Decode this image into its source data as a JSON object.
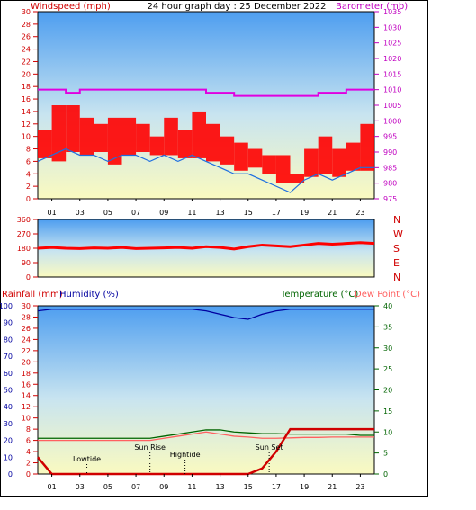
{
  "title": "24 hour graph day : 25 December 2022",
  "colors": {
    "wind": "#ff0000",
    "gust_line": "#1e6fe0",
    "baro": "#e000e0",
    "humidity": "#0000a0",
    "temperature": "#006400",
    "dewpoint": "#ff6060",
    "rain": "#d00000",
    "grad_top": "#5aa8f0",
    "grad_bottom": "#f8f8c8"
  },
  "chart_data": [
    {
      "type": "line",
      "title": "24 hour graph day : 25 December 2022",
      "ylabel": "Windspeed (mph)",
      "ylabel2": "Barometer (mb)",
      "ylim": [
        0,
        30
      ],
      "ylim2": [
        975,
        1035
      ],
      "yticks": [
        "0",
        "2",
        "4",
        "6",
        "8",
        "10",
        "12",
        "14",
        "16",
        "18",
        "20",
        "22",
        "24",
        "26",
        "28",
        "30"
      ],
      "yticks2": [
        "975",
        "980",
        "985",
        "990",
        "995",
        "1000",
        "1005",
        "1010",
        "1015",
        "1020",
        "1025",
        "1030",
        "1035"
      ],
      "xticks": [
        "01",
        "03",
        "05",
        "07",
        "09",
        "11",
        "13",
        "15",
        "17",
        "19",
        "21",
        "23"
      ],
      "x": [
        0,
        1,
        2,
        3,
        4,
        5,
        6,
        7,
        8,
        9,
        10,
        11,
        12,
        13,
        14,
        15,
        16,
        17,
        18,
        19,
        20,
        21,
        22,
        23,
        24
      ],
      "series": [
        {
          "name": "Windspeed (mph)",
          "values": [
            8,
            9,
            10,
            9,
            9,
            8,
            9,
            9,
            8,
            9,
            8,
            9,
            8,
            7,
            6,
            6,
            5,
            4,
            3,
            5,
            6,
            5,
            6,
            7,
            7
          ]
        },
        {
          "name": "Barometer (mb)",
          "values": [
            1010,
            1010,
            1009,
            1010,
            1010,
            1010,
            1010,
            1010,
            1010,
            1010,
            1010,
            1010,
            1009,
            1009,
            1008,
            1008,
            1008,
            1008,
            1008,
            1008,
            1009,
            1009,
            1010,
            1010,
            1010
          ]
        }
      ]
    },
    {
      "type": "line",
      "ylabel": "N W S E N",
      "ylim": [
        0,
        360
      ],
      "yticks": [
        "0",
        "90",
        "180",
        "270",
        "360"
      ],
      "compass": [
        "N",
        "W",
        "S",
        "E",
        "N"
      ],
      "series": [
        {
          "name": "Wind direction",
          "values": [
            180,
            185,
            180,
            178,
            182,
            180,
            185,
            178,
            180,
            182,
            185,
            180,
            190,
            185,
            175,
            190,
            200,
            195,
            190,
            200,
            210,
            205,
            210,
            215,
            210
          ]
        }
      ]
    },
    {
      "type": "line",
      "ylabel": "Rainfall (mm)",
      "ylabel_humidity": "Humidity (%)",
      "ylabel2": "Temperature (°C)",
      "ylabel3": "Dew Point (°C)",
      "ylim_humidity": [
        0,
        100
      ],
      "ylim_rain": [
        0,
        30
      ],
      "ylim_temp": [
        0,
        40
      ],
      "yticks_humidity": [
        "0",
        "10",
        "20",
        "30",
        "40",
        "50",
        "60",
        "70",
        "80",
        "90",
        "100"
      ],
      "yticks_rain": [
        "0",
        "2",
        "4",
        "6",
        "8",
        "10",
        "12",
        "14",
        "16",
        "18",
        "20",
        "22",
        "24",
        "26",
        "28",
        "30"
      ],
      "yticks_temp": [
        "0",
        "5",
        "10",
        "15",
        "20",
        "25",
        "30",
        "35",
        "40"
      ],
      "xticks": [
        "01",
        "03",
        "05",
        "07",
        "09",
        "11",
        "13",
        "15",
        "17",
        "19",
        "21",
        "23"
      ],
      "x": [
        0,
        1,
        2,
        3,
        4,
        5,
        6,
        7,
        8,
        9,
        10,
        11,
        12,
        13,
        14,
        15,
        16,
        17,
        18,
        19,
        20,
        21,
        22,
        23,
        24
      ],
      "series": [
        {
          "name": "Humidity (%)",
          "values": [
            97,
            98,
            98,
            98,
            98,
            98,
            98,
            98,
            98,
            98,
            98,
            98,
            97,
            95,
            93,
            92,
            95,
            97,
            98,
            98,
            98,
            98,
            98,
            98,
            98
          ]
        },
        {
          "name": "Temperature (°C)",
          "values": [
            8.5,
            8.5,
            8.5,
            8.5,
            8.5,
            8.5,
            8.5,
            8.5,
            8.5,
            9,
            9.5,
            10,
            10.5,
            10.5,
            10,
            9.8,
            9.6,
            9.6,
            9.5,
            9.5,
            9.5,
            9.5,
            9.5,
            9.2,
            9.2
          ]
        },
        {
          "name": "Dew Point (°C)",
          "values": [
            8,
            8,
            8,
            8,
            8,
            8,
            8,
            8,
            8,
            8.5,
            9,
            9.5,
            10,
            9.5,
            9,
            8.8,
            8.5,
            8.5,
            8.6,
            8.7,
            8.7,
            8.8,
            8.8,
            8.8,
            8.8
          ]
        },
        {
          "name": "Rainfall (mm)",
          "values": [
            3,
            0,
            0,
            0,
            0,
            0,
            0,
            0,
            0,
            0,
            0,
            0,
            0,
            0,
            0,
            0,
            1,
            4,
            8,
            8,
            8,
            8,
            8,
            8,
            8
          ]
        }
      ],
      "annotations": [
        "Lowtide",
        "Sun Rise",
        "Hightide",
        "Sun Set"
      ]
    }
  ]
}
